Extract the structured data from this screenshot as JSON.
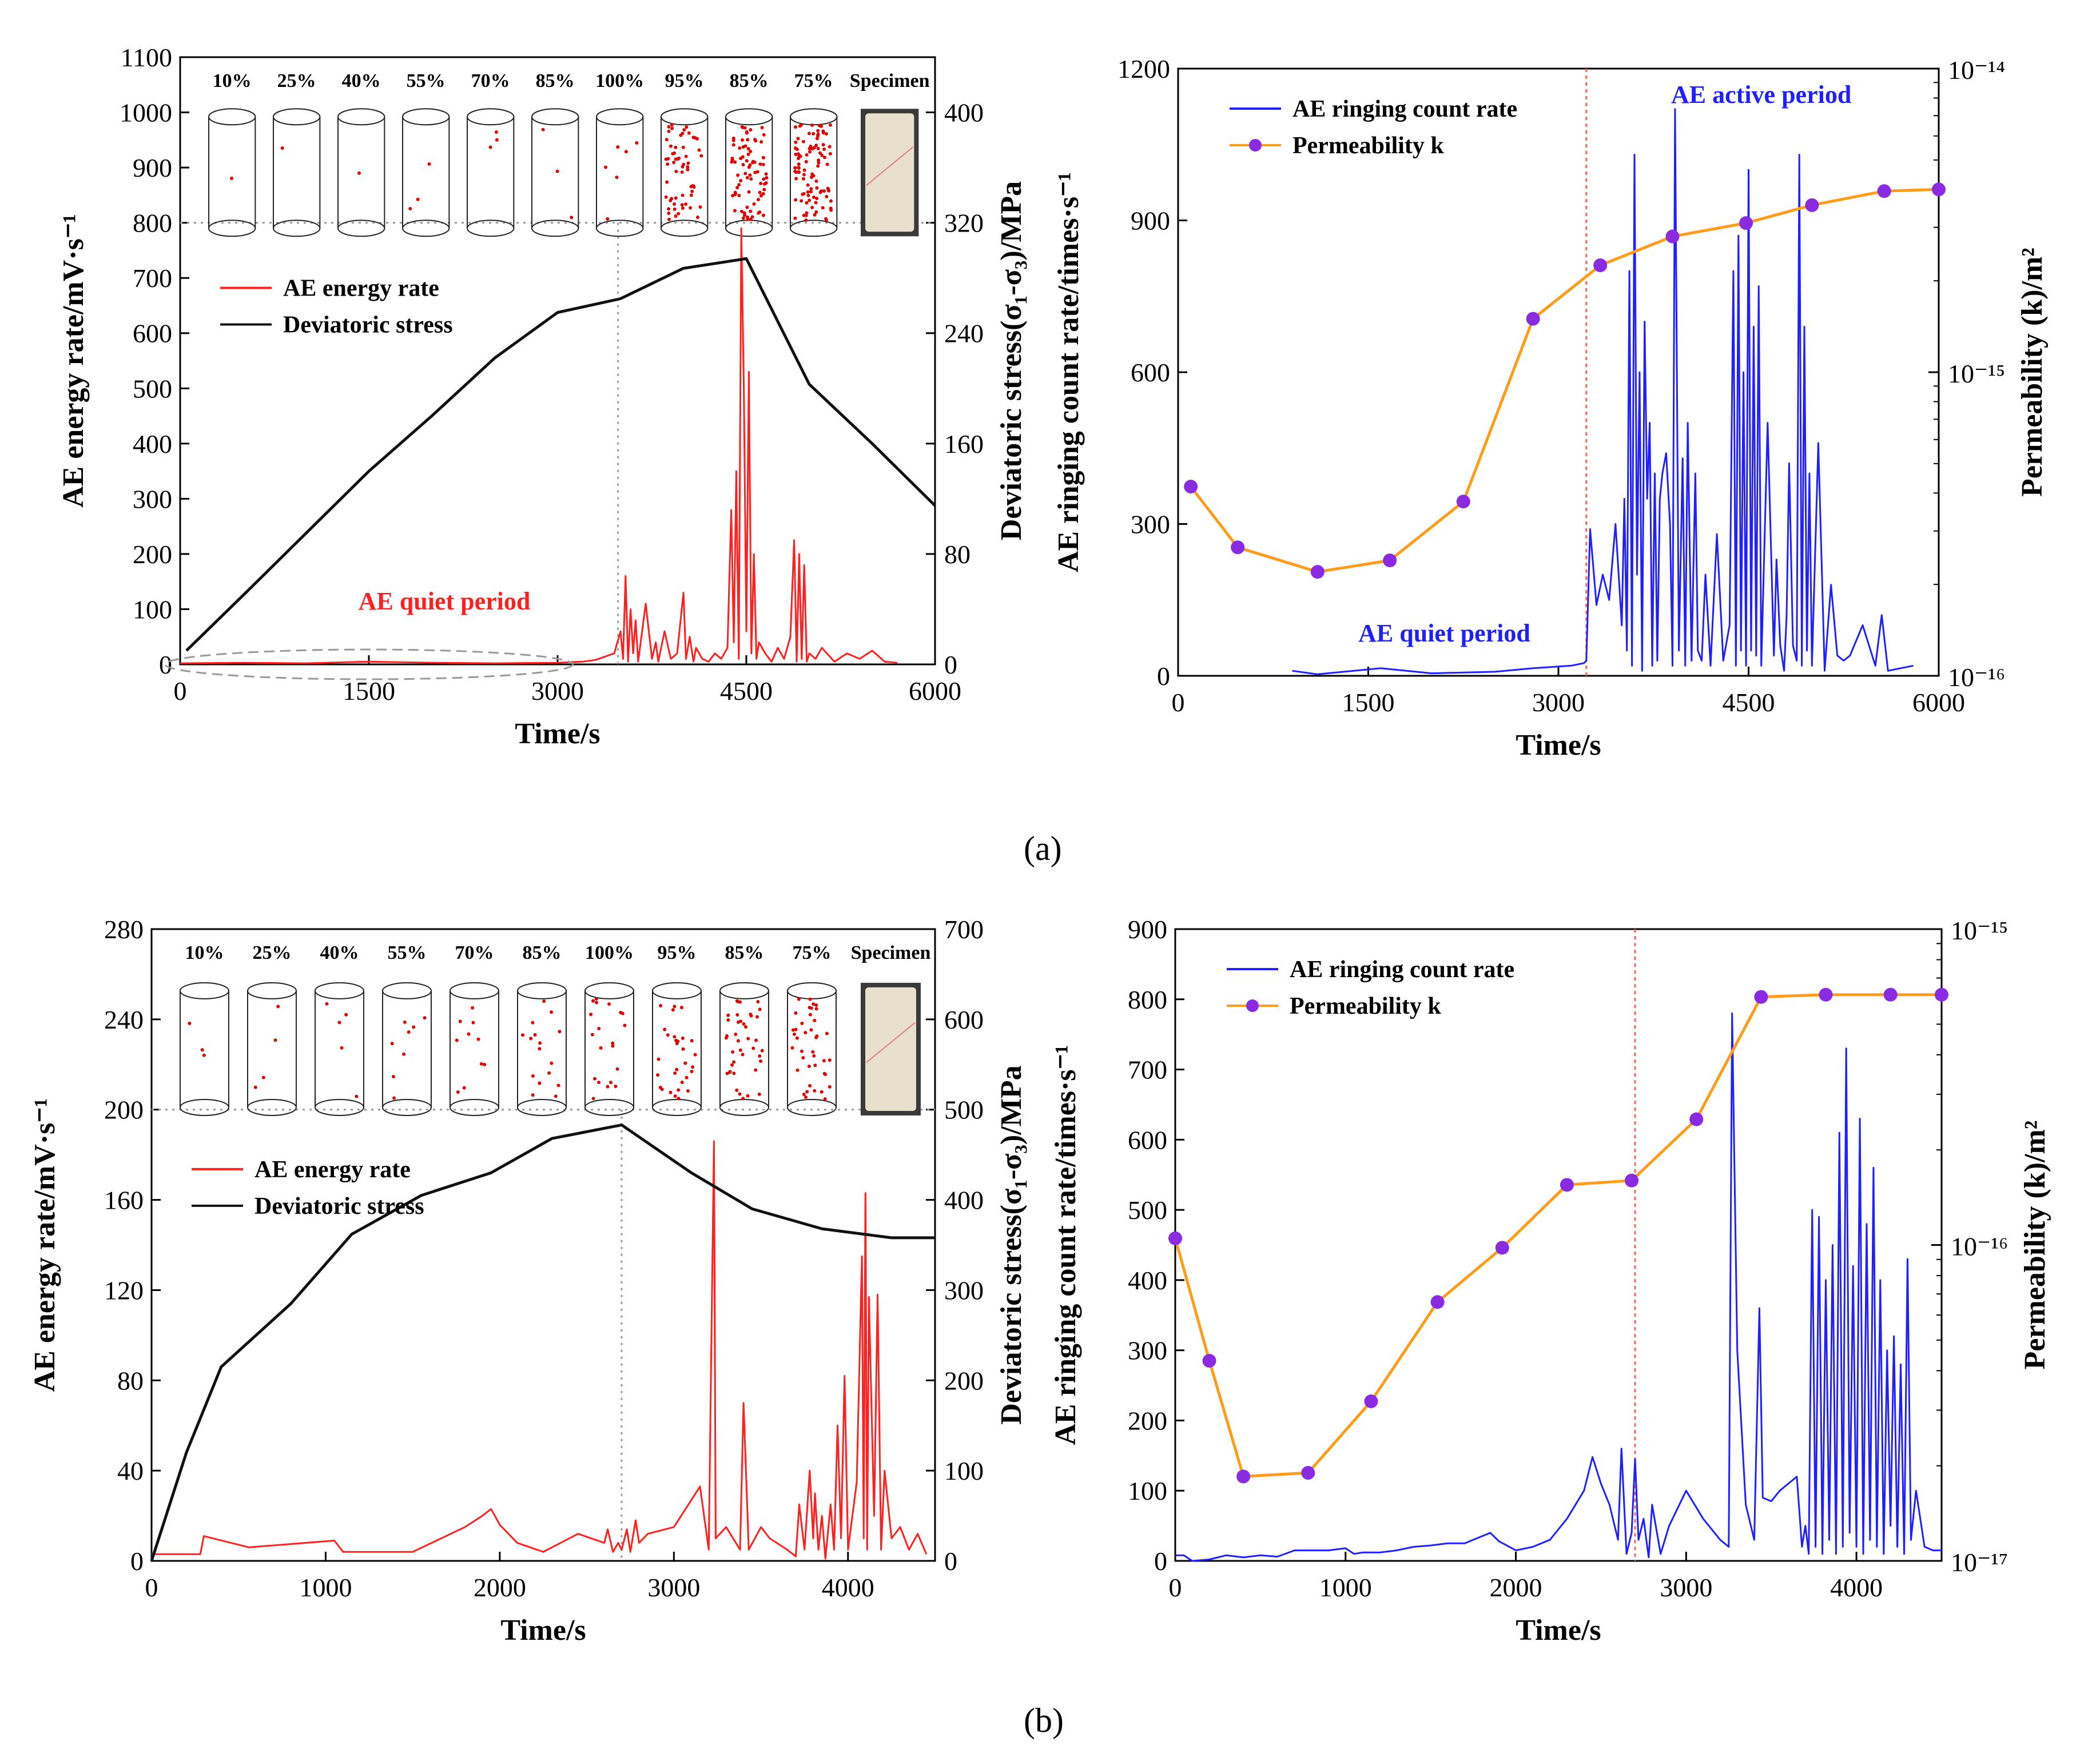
{
  "panel_labels": {
    "a": "(a)",
    "b": "(b)"
  },
  "colors": {
    "energy": "#ff2020",
    "stress": "#111111",
    "ringing": "#2020ff",
    "perm_line": "#ff9c1a",
    "perm_marker": "#8a2be2",
    "divider": "#999999",
    "red_divider": "#ff6060"
  },
  "chart_data": [
    {
      "id": "a-left",
      "type": "line",
      "xlabel": "Time/s",
      "ylabel": "AE energy rate/mV·s⁻¹",
      "y2label": "Deviatoric stress(σ₁-σ₃)/MPa",
      "xlim": [
        0,
        6000
      ],
      "ylim": [
        0,
        1100
      ],
      "y2lim": [
        0,
        440
      ],
      "xticks": [
        0,
        1500,
        3000,
        4500,
        6000
      ],
      "yticks": [
        0,
        100,
        200,
        300,
        400,
        500,
        600,
        700,
        800,
        900,
        1000,
        1100
      ],
      "y2ticks": [
        0,
        80,
        160,
        240,
        320,
        400
      ],
      "legend": [
        "AE energy rate",
        "Deviatoric stress"
      ],
      "annotations": [
        "AE quiet period"
      ],
      "peak_time": 3480,
      "threshold": 800,
      "specimen_labels": [
        "10%",
        "25%",
        "40%",
        "55%",
        "70%",
        "85%",
        "100%",
        "95%",
        "85%",
        "75%",
        "Specimen"
      ],
      "specimen_crack_density": [
        1,
        1,
        1,
        3,
        3,
        3,
        6,
        60,
        80,
        100
      ],
      "series": [
        {
          "name": "AE energy rate",
          "x": [
            0,
            500,
            1000,
            1500,
            2000,
            2500,
            3000,
            3200,
            3300,
            3450,
            3500,
            3520,
            3540,
            3560,
            3580,
            3600,
            3620,
            3640,
            3700,
            3750,
            3780,
            3800,
            3850,
            3900,
            3950,
            4000,
            4020,
            4050,
            4080,
            4100,
            4150,
            4200,
            4250,
            4300,
            4350,
            4380,
            4400,
            4420,
            4440,
            4460,
            4480,
            4500,
            4520,
            4540,
            4560,
            4580,
            4600,
            4650,
            4700,
            4750,
            4800,
            4850,
            4880,
            4900,
            4920,
            4940,
            4960,
            4980,
            5000,
            5050,
            5100,
            5200,
            5300,
            5400,
            5500,
            5600,
            5700
          ],
          "values": [
            2,
            3,
            2,
            5,
            3,
            2,
            3,
            5,
            8,
            20,
            60,
            10,
            160,
            5,
            100,
            20,
            80,
            5,
            110,
            10,
            40,
            5,
            60,
            10,
            20,
            130,
            10,
            50,
            5,
            30,
            10,
            5,
            20,
            10,
            30,
            280,
            40,
            350,
            10,
            790,
            500,
            60,
            530,
            20,
            200,
            10,
            40,
            20,
            5,
            30,
            10,
            50,
            225,
            5,
            200,
            10,
            180,
            5,
            20,
            10,
            30,
            5,
            20,
            10,
            25,
            5,
            3
          ]
        },
        {
          "name": "Deviatoric stress",
          "axis": "y2",
          "x": [
            50,
            500,
            1000,
            1500,
            2000,
            2500,
            3000,
            3500,
            4000,
            4500,
            5000,
            5500,
            6000
          ],
          "values": [
            10,
            50,
            95,
            140,
            180,
            222,
            255,
            265,
            287,
            294,
            203,
            160,
            115
          ]
        }
      ]
    },
    {
      "id": "a-right",
      "type": "line",
      "xlabel": "Time/s",
      "ylabel": "AE ringing count rate/times·s⁻¹",
      "y2label": "Permeability (k)/m²",
      "xlim": [
        0,
        6000
      ],
      "ylim": [
        0,
        1200
      ],
      "y2lim": [
        1e-16,
        1e-14
      ],
      "y2scale": "log",
      "xticks": [
        0,
        1500,
        3000,
        4500,
        6000
      ],
      "yticks": [
        0,
        300,
        600,
        900,
        1200
      ],
      "y2ticks": [
        "10⁻¹⁶",
        "10⁻¹⁵",
        "10⁻¹⁴"
      ],
      "legend": [
        "AE ringing count rate",
        "Permeability k"
      ],
      "annotations": [
        "AE quiet period",
        "AE active period"
      ],
      "divider_time": 3220,
      "series": [
        {
          "name": "AE ringing count rate",
          "x": [
            900,
            1100,
            1600,
            2000,
            2500,
            2800,
            3100,
            3200,
            3220,
            3250,
            3300,
            3350,
            3400,
            3450,
            3500,
            3520,
            3540,
            3560,
            3580,
            3600,
            3620,
            3640,
            3660,
            3680,
            3700,
            3720,
            3740,
            3760,
            3780,
            3800,
            3820,
            3850,
            3880,
            3900,
            3920,
            3950,
            3980,
            4000,
            4020,
            4050,
            4080,
            4100,
            4130,
            4160,
            4200,
            4250,
            4300,
            4350,
            4380,
            4400,
            4420,
            4440,
            4460,
            4480,
            4500,
            4520,
            4540,
            4560,
            4580,
            4600,
            4650,
            4700,
            4720,
            4750,
            4780,
            4800,
            4820,
            4850,
            4880,
            4900,
            4920,
            4940,
            4960,
            4980,
            5000,
            5050,
            5100,
            5150,
            5200,
            5250,
            5300,
            5400,
            5500,
            5550,
            5600,
            5700,
            5800
          ],
          "values": [
            10,
            3,
            15,
            5,
            8,
            15,
            20,
            25,
            30,
            290,
            140,
            200,
            150,
            300,
            100,
            350,
            50,
            800,
            20,
            1030,
            200,
            600,
            10,
            700,
            350,
            500,
            20,
            400,
            30,
            350,
            400,
            440,
            300,
            20,
            1120,
            50,
            430,
            20,
            500,
            30,
            400,
            50,
            30,
            200,
            20,
            280,
            30,
            100,
            800,
            20,
            870,
            50,
            600,
            20,
            1000,
            50,
            690,
            40,
            770,
            20,
            500,
            40,
            230,
            60,
            10,
            120,
            420,
            60,
            30,
            1030,
            20,
            690,
            50,
            400,
            20,
            460,
            10,
            180,
            40,
            30,
            40,
            100,
            20,
            120,
            10,
            15,
            20
          ]
        },
        {
          "name": "Permeability k",
          "axis": "y2",
          "x": [
            100,
            470,
            1100,
            1670,
            2250,
            2800,
            3330,
            3900,
            4480,
            5000,
            5570,
            6000
          ],
          "values": [
            4.2e-16,
            2.65e-16,
            2.2e-16,
            2.4e-16,
            3.75e-16,
            1.5e-15,
            2.25e-15,
            2.8e-15,
            3.1e-15,
            3.55e-15,
            3.95e-15,
            4e-15
          ]
        }
      ]
    },
    {
      "id": "b-left",
      "type": "line",
      "xlabel": "Time/s",
      "ylabel": "AE energy rate/mV·s⁻¹",
      "y2label": "Deviatoric stress(σ₁-σ₃)/MPa",
      "xlim": [
        0,
        4500
      ],
      "ylim": [
        0,
        280
      ],
      "y2lim": [
        0,
        700
      ],
      "xticks": [
        0,
        1000,
        2000,
        3000,
        4000
      ],
      "yticks": [
        0,
        40,
        80,
        120,
        160,
        200,
        240,
        280
      ],
      "y2ticks": [
        0,
        100,
        200,
        300,
        400,
        500,
        600,
        700
      ],
      "legend": [
        "AE energy rate",
        "Deviatoric stress"
      ],
      "annotations": [],
      "peak_time": 2700,
      "threshold": 200,
      "specimen_labels": [
        "10%",
        "25%",
        "40%",
        "55%",
        "70%",
        "85%",
        "100%",
        "95%",
        "85%",
        "75%",
        "Specimen"
      ],
      "specimen_crack_density": [
        3,
        4,
        5,
        8,
        10,
        16,
        20,
        30,
        40,
        40
      ],
      "series": [
        {
          "name": "AE energy rate",
          "x": [
            0,
            280,
            300,
            560,
            1050,
            1100,
            1120,
            1500,
            1800,
            1900,
            1950,
            2000,
            2100,
            2250,
            2450,
            2600,
            2620,
            2650,
            2680,
            2700,
            2730,
            2750,
            2780,
            2800,
            2850,
            3000,
            3150,
            3200,
            3230,
            3240,
            3300,
            3380,
            3400,
            3430,
            3500,
            3550,
            3650,
            3700,
            3720,
            3750,
            3780,
            3800,
            3810,
            3830,
            3850,
            3870,
            3900,
            3920,
            3940,
            3960,
            3980,
            4000,
            4050,
            4080,
            4090,
            4100,
            4110,
            4120,
            4150,
            4170,
            4190,
            4210,
            4250,
            4300,
            4350,
            4400,
            4450
          ],
          "values": [
            3,
            3,
            11,
            6,
            9,
            4,
            4,
            4,
            15,
            20,
            23,
            16,
            8,
            4,
            12,
            8,
            14,
            4,
            8,
            5,
            14,
            4,
            18,
            8,
            12,
            15,
            33,
            5,
            186,
            10,
            15,
            5,
            70,
            5,
            15,
            10,
            5,
            2,
            25,
            5,
            40,
            10,
            30,
            5,
            20,
            1,
            25,
            5,
            60,
            10,
            82,
            5,
            35,
            135,
            10,
            163,
            5,
            117,
            20,
            118,
            5,
            40,
            10,
            15,
            5,
            12,
            3
          ]
        },
        {
          "name": "Deviatoric stress",
          "axis": "y2",
          "x": [
            0,
            200,
            400,
            800,
            1150,
            1550,
            1950,
            2300,
            2700,
            3100,
            3450,
            3850,
            4250,
            4500
          ],
          "values": [
            0,
            120,
            215,
            285,
            362,
            405,
            430,
            468,
            483,
            430,
            390,
            368,
            358,
            358
          ]
        }
      ]
    },
    {
      "id": "b-right",
      "type": "line",
      "xlabel": "Time/s",
      "ylabel": "AE ringing count rate/times·s⁻¹",
      "y2label": "Permeability (k)/m²",
      "xlim": [
        0,
        4500
      ],
      "ylim": [
        0,
        900
      ],
      "y2lim": [
        1e-17,
        1e-15
      ],
      "y2scale": "log",
      "xticks": [
        0,
        1000,
        2000,
        3000,
        4000
      ],
      "yticks": [
        0,
        100,
        200,
        300,
        400,
        500,
        600,
        700,
        800,
        900
      ],
      "y2ticks": [
        "10⁻¹⁷",
        "10⁻¹⁶",
        "10⁻¹⁵"
      ],
      "legend": [
        "AE ringing count rate",
        "Permeability k"
      ],
      "annotations": [],
      "divider_time": 2700,
      "series": [
        {
          "name": "AE ringing count rate",
          "x": [
            0,
            50,
            100,
            200,
            300,
            400,
            500,
            600,
            700,
            800,
            900,
            1000,
            1050,
            1100,
            1200,
            1300,
            1400,
            1500,
            1600,
            1700,
            1800,
            1850,
            1900,
            2000,
            2100,
            2200,
            2300,
            2400,
            2450,
            2500,
            2550,
            2600,
            2620,
            2650,
            2680,
            2700,
            2720,
            2750,
            2780,
            2800,
            2850,
            2900,
            3000,
            3100,
            3200,
            3250,
            3270,
            3300,
            3350,
            3400,
            3430,
            3450,
            3500,
            3550,
            3600,
            3650,
            3680,
            3700,
            3720,
            3740,
            3760,
            3780,
            3800,
            3820,
            3840,
            3860,
            3880,
            3900,
            3920,
            3940,
            3960,
            3980,
            4000,
            4020,
            4040,
            4060,
            4080,
            4100,
            4120,
            4140,
            4160,
            4180,
            4200,
            4220,
            4240,
            4260,
            4280,
            4300,
            4320,
            4350,
            4400,
            4450,
            4500
          ],
          "values": [
            8,
            8,
            0,
            2,
            8,
            5,
            8,
            6,
            15,
            15,
            15,
            18,
            10,
            12,
            12,
            15,
            20,
            22,
            25,
            25,
            35,
            40,
            28,
            15,
            20,
            30,
            60,
            100,
            148,
            110,
            80,
            30,
            160,
            10,
            40,
            145,
            30,
            60,
            5,
            80,
            10,
            50,
            100,
            60,
            30,
            20,
            780,
            300,
            80,
            30,
            360,
            90,
            85,
            100,
            110,
            120,
            20,
            50,
            10,
            500,
            20,
            490,
            10,
            400,
            30,
            450,
            10,
            610,
            20,
            730,
            40,
            420,
            20,
            630,
            10,
            480,
            30,
            560,
            20,
            400,
            10,
            300,
            50,
            320,
            20,
            280,
            10,
            430,
            30,
            100,
            20,
            15,
            15
          ]
        },
        {
          "name": "Permeability k",
          "axis": "y2",
          "x": [
            0,
            200,
            400,
            780,
            1150,
            1540,
            1920,
            2300,
            2680,
            3060,
            3440,
            3820,
            4200,
            4500
          ],
          "values": [
            1.05e-16,
            4.3e-17,
            1.85e-17,
            1.9e-17,
            3.2e-17,
            6.6e-17,
            9.8e-17,
            1.55e-16,
            1.6e-16,
            2.5e-16,
            6.1e-16,
            6.2e-16,
            6.2e-16,
            6.2e-16
          ]
        }
      ]
    }
  ]
}
